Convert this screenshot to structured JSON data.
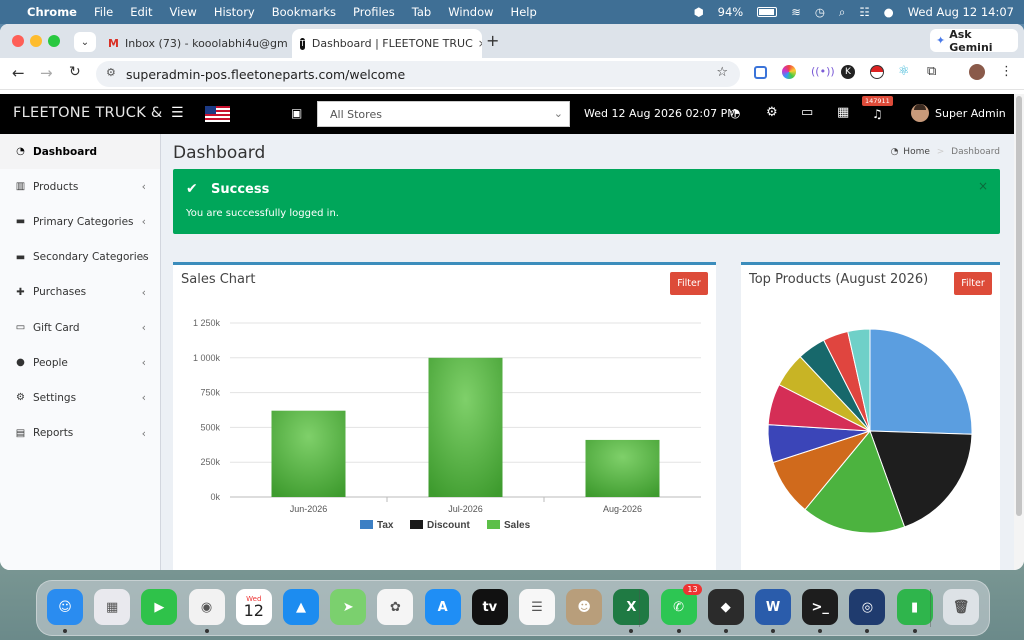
{
  "menubar": {
    "app": "Chrome",
    "items": [
      "File",
      "Edit",
      "View",
      "History",
      "Bookmarks",
      "Profiles",
      "Tab",
      "Window",
      "Help"
    ],
    "battery": "94%",
    "datetime": "Wed Aug 12  14:07"
  },
  "browser": {
    "tabs": [
      {
        "title": "Inbox (73) - kooolabhi4u@gm"
      },
      {
        "title": "Dashboard | FLEETONE TRUC"
      }
    ],
    "ask_gemini": "Ask Gemini",
    "url": "superadmin-pos.fleetoneparts.com/welcome"
  },
  "app": {
    "brand": "FLEETONE TRUCK &",
    "store_select": "All Stores",
    "datetime": "Wed 12 Aug 2026 02:07 PM",
    "notification_count": "147911",
    "user": "Super Admin",
    "sidebar": [
      {
        "label": "Dashboard",
        "icon": "dashboard-icon",
        "glyph": "◔",
        "chevron": false
      },
      {
        "label": "Products",
        "icon": "barcode-icon",
        "glyph": "▥",
        "chevron": true
      },
      {
        "label": "Primary Categories",
        "icon": "folder-icon",
        "glyph": "▬",
        "chevron": true
      },
      {
        "label": "Secondary Categories",
        "icon": "folder-icon",
        "glyph": "▬",
        "chevron": true
      },
      {
        "label": "Purchases",
        "icon": "plus-icon",
        "glyph": "✚",
        "chevron": true
      },
      {
        "label": "Gift Card",
        "icon": "credit-card-icon",
        "glyph": "▭",
        "chevron": true
      },
      {
        "label": "People",
        "icon": "users-icon",
        "glyph": "●",
        "chevron": true
      },
      {
        "label": "Settings",
        "icon": "cogs-icon",
        "glyph": "⚙",
        "chevron": true
      },
      {
        "label": "Reports",
        "icon": "bar-chart-icon",
        "glyph": "▤",
        "chevron": true
      }
    ],
    "page_title": "Dashboard",
    "breadcrumb": {
      "home": "Home",
      "current": "Dashboard"
    },
    "alert": {
      "title": "Success",
      "message": "You are successfully logged in.",
      "close": "×"
    },
    "sales_box": {
      "title": "Sales Chart",
      "filter": "Filter"
    },
    "products_box": {
      "title": "Top Products (August 2026)",
      "filter": "Filter"
    }
  },
  "chart_data": [
    {
      "type": "bar",
      "title": "Sales Chart",
      "categories": [
        "Jun-2026",
        "Jul-2026",
        "Aug-2026"
      ],
      "series": [
        {
          "name": "Tax",
          "values": [
            0,
            0,
            0
          ],
          "color": "#3c7fc4"
        },
        {
          "name": "Discount",
          "values": [
            0,
            0,
            0
          ],
          "color": "#1a1a1a"
        },
        {
          "name": "Sales",
          "values": [
            620000,
            1000000,
            410000
          ],
          "color": "#4cae3c"
        }
      ],
      "yticks": [
        "0k",
        "250k",
        "500k",
        "750k",
        "1 000k",
        "1 250k"
      ],
      "ylim": [
        0,
        1250000
      ],
      "legend": "bottom"
    },
    {
      "type": "pie",
      "title": "Top Products (August 2026)",
      "slices": [
        {
          "value": 25.5,
          "color": "#5b9ee0"
        },
        {
          "value": 19.0,
          "color": "#1e1e1e"
        },
        {
          "value": 16.5,
          "color": "#4cb33f"
        },
        {
          "value": 9.0,
          "color": "#d06a1c"
        },
        {
          "value": 6.0,
          "color": "#3b45b8"
        },
        {
          "value": 6.5,
          "color": "#d52e56"
        },
        {
          "value": 5.5,
          "color": "#c8b425"
        },
        {
          "value": 4.5,
          "color": "#17686b"
        },
        {
          "value": 4.0,
          "color": "#e0453f"
        },
        {
          "value": 3.5,
          "color": "#6fd0c8"
        }
      ]
    }
  ],
  "dock": {
    "apps": [
      {
        "name": "finder-icon",
        "color": "#2a8cf0",
        "glyph": "☺"
      },
      {
        "name": "launchpad-icon",
        "color": "#e9e9ee",
        "glyph": "▦"
      },
      {
        "name": "facetime-icon",
        "color": "#2fc24a",
        "glyph": "▶"
      },
      {
        "name": "chrome-icon",
        "color": "#f2f2f2",
        "glyph": "◉"
      },
      {
        "name": "calendar-icon",
        "color": "#ffffff",
        "glyph": "12"
      },
      {
        "name": "keynote-icon",
        "color": "#1c8cf0",
        "glyph": "▲"
      },
      {
        "name": "maps-icon",
        "color": "#7bd06e",
        "glyph": "➤"
      },
      {
        "name": "photos-icon",
        "color": "#f5f5f5",
        "glyph": "✿"
      },
      {
        "name": "app-store-icon",
        "color": "#1f8ef5",
        "glyph": "A"
      },
      {
        "name": "apple-tv-icon",
        "color": "#111111",
        "glyph": "tv"
      },
      {
        "name": "reminders-icon",
        "color": "#f7f7f7",
        "glyph": "☰"
      },
      {
        "name": "contacts-icon",
        "color": "#b89e7b",
        "glyph": "☻"
      },
      {
        "name": "excel-icon",
        "color": "#1f7a43",
        "glyph": "X"
      },
      {
        "name": "whatsapp-icon",
        "color": "#2dc653",
        "glyph": "✆"
      },
      {
        "name": "cube-app-icon",
        "color": "#2b2b2b",
        "glyph": "◆"
      },
      {
        "name": "word-icon",
        "color": "#2a5cab",
        "glyph": "W"
      },
      {
        "name": "terminal-icon",
        "color": "#1d1d1d",
        "glyph": ">_"
      },
      {
        "name": "robot-app-icon",
        "color": "#1f3b6e",
        "glyph": "◎"
      },
      {
        "name": "numbers-icon",
        "color": "#2fb54c",
        "glyph": "▮"
      },
      {
        "name": "trash-icon",
        "color": "#dde2e6",
        "glyph": "🗑"
      }
    ],
    "calendar_day": "Wed",
    "calendar_date": "12",
    "whatsapp_badge": "13"
  }
}
